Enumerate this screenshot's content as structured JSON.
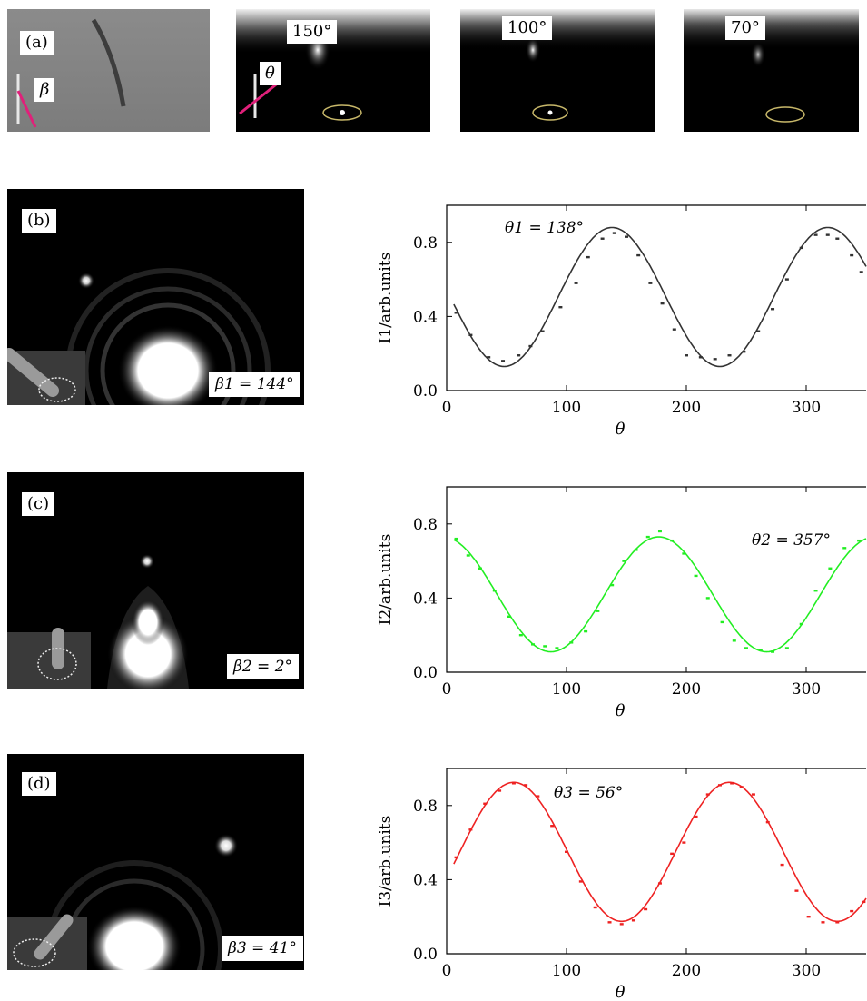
{
  "panel_a": {
    "label": "(a)",
    "beta_symbol": "β",
    "theta_symbol": "θ",
    "frames": [
      {
        "angle": "150°"
      },
      {
        "angle": "100°"
      },
      {
        "angle": "70°"
      }
    ]
  },
  "panel_b": {
    "label": "(b)",
    "beta_value": "β1 = 144°"
  },
  "panel_c": {
    "label": "(c)",
    "beta_value": "β2 = 2°"
  },
  "panel_d": {
    "label": "(d)",
    "beta_value": "β3 = 41°"
  },
  "colors": {
    "chart1": "#333333",
    "chart2": "#22ee22",
    "chart3": "#ee2222"
  },
  "chart_data": [
    {
      "type": "line",
      "title": "",
      "annotation": "θ1 = 138°",
      "xlabel": "θ",
      "ylabel": "I1/arb.units",
      "xlim": [
        0,
        350
      ],
      "ylim": [
        0,
        1.0
      ],
      "xticks": [
        0,
        100,
        200,
        300
      ],
      "yticks": [
        "0.0",
        "0.4",
        "0.8"
      ],
      "color": "#333333",
      "fit": {
        "center": 0.505,
        "amplitude": 0.375,
        "phase_deg": 138
      },
      "points": {
        "x": [
          8,
          20,
          35,
          47,
          60,
          70,
          80,
          95,
          108,
          118,
          130,
          140,
          150,
          160,
          170,
          180,
          190,
          200,
          212,
          224,
          236,
          248,
          260,
          272,
          284,
          296,
          308,
          318,
          326,
          338,
          346
        ],
        "y": [
          0.42,
          0.3,
          0.18,
          0.16,
          0.19,
          0.24,
          0.32,
          0.45,
          0.58,
          0.72,
          0.82,
          0.85,
          0.83,
          0.73,
          0.58,
          0.47,
          0.33,
          0.19,
          0.18,
          0.17,
          0.19,
          0.21,
          0.32,
          0.44,
          0.6,
          0.77,
          0.84,
          0.84,
          0.82,
          0.73,
          0.64
        ]
      }
    },
    {
      "type": "line",
      "title": "",
      "annotation": "θ2 = 357°",
      "xlabel": "θ",
      "ylabel": "I2/arb.units",
      "xlim": [
        0,
        350
      ],
      "ylim": [
        0,
        1.0
      ],
      "xticks": [
        0,
        100,
        200,
        300
      ],
      "yticks": [
        "0.0",
        "0.4",
        "0.8"
      ],
      "color": "#22ee22",
      "fit": {
        "center": 0.42,
        "amplitude": 0.31,
        "phase_deg": 357
      },
      "points": {
        "x": [
          8,
          18,
          28,
          40,
          52,
          62,
          72,
          82,
          92,
          104,
          116,
          126,
          138,
          148,
          158,
          168,
          178,
          188,
          198,
          208,
          218,
          230,
          240,
          250,
          262,
          272,
          284,
          296,
          308,
          320,
          332,
          344
        ],
        "y": [
          0.72,
          0.63,
          0.56,
          0.44,
          0.3,
          0.2,
          0.15,
          0.14,
          0.13,
          0.16,
          0.22,
          0.33,
          0.47,
          0.6,
          0.66,
          0.73,
          0.76,
          0.71,
          0.64,
          0.52,
          0.4,
          0.27,
          0.17,
          0.13,
          0.12,
          0.11,
          0.13,
          0.26,
          0.44,
          0.56,
          0.67,
          0.71
        ]
      }
    },
    {
      "type": "line",
      "title": "",
      "annotation": "θ3 = 56°",
      "xlabel": "θ",
      "ylabel": "I3/arb.units",
      "xlim": [
        0,
        350
      ],
      "ylim": [
        0,
        1.0
      ],
      "xticks": [
        0,
        100,
        200,
        300
      ],
      "yticks": [
        "0.0",
        "0.4",
        "0.8"
      ],
      "color": "#ee2222",
      "fit": {
        "center": 0.55,
        "amplitude": 0.375,
        "phase_deg": 56
      },
      "points": {
        "x": [
          8,
          20,
          32,
          44,
          56,
          66,
          76,
          88,
          100,
          112,
          124,
          136,
          146,
          156,
          166,
          178,
          188,
          198,
          208,
          218,
          228,
          238,
          246,
          256,
          268,
          280,
          292,
          302,
          314,
          326,
          338,
          348
        ],
        "y": [
          0.52,
          0.67,
          0.81,
          0.88,
          0.92,
          0.91,
          0.85,
          0.69,
          0.55,
          0.39,
          0.25,
          0.17,
          0.16,
          0.18,
          0.24,
          0.38,
          0.54,
          0.6,
          0.74,
          0.86,
          0.91,
          0.92,
          0.9,
          0.86,
          0.71,
          0.48,
          0.34,
          0.2,
          0.17,
          0.17,
          0.23,
          0.28
        ]
      }
    }
  ]
}
